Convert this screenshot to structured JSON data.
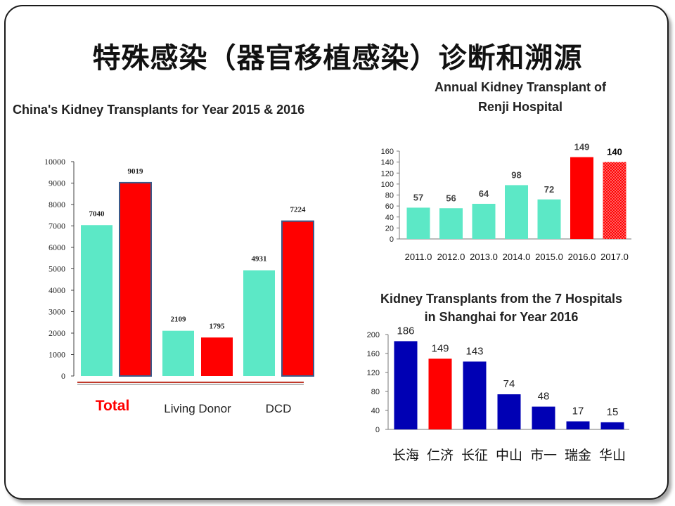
{
  "slide": {
    "title": "特殊感染（器官移植感染）诊断和溯源"
  },
  "colors": {
    "y2015": "#5ce8c6",
    "y2016": "#ff0000",
    "blue": "#0000b4",
    "border": "#3a5a8a"
  },
  "chart_data": [
    {
      "type": "bar",
      "title": "China's Kidney Transplants for Year 2015 & 2016",
      "categories": [
        "Total",
        "Living Donor",
        "DCD"
      ],
      "series": [
        {
          "values": [
            7040,
            2109,
            4931
          ]
        },
        {
          "values": [
            9019,
            1795,
            7224
          ]
        }
      ],
      "ylim": [
        0,
        10000
      ],
      "yticks": [
        0,
        1000,
        2000,
        3000,
        4000,
        5000,
        6000,
        7000,
        8000,
        9000,
        10000
      ],
      "ytick_labels": [
        "0",
        "1000",
        "2000",
        "3000",
        "4000",
        "5000",
        "6000",
        "7000",
        "8000",
        "9000",
        "10000"
      ],
      "grid": false
    },
    {
      "type": "bar",
      "title_lines": [
        "Annual Kidney Transplant of",
        "Renji Hospital"
      ],
      "categories": [
        "2011.0",
        "2012.0",
        "2013.0",
        "2014.0",
        "2015.0",
        "2016.0",
        "2017.0"
      ],
      "values": [
        57,
        56,
        64,
        98,
        72,
        149,
        140
      ],
      "ylim": [
        0,
        160
      ],
      "yticks": [
        0,
        20,
        40,
        60,
        80,
        100,
        120,
        140,
        160
      ],
      "grid": false
    },
    {
      "type": "bar",
      "title_lines": [
        "Kidney Transplants from the 7 Hospitals",
        "in Shanghai for Year 2016"
      ],
      "categories": [
        "长海",
        "仁济",
        "长征",
        "中山",
        "市一",
        "瑞金",
        "华山"
      ],
      "values": [
        186,
        149,
        143,
        74,
        48,
        17,
        15
      ],
      "ylim": [
        0,
        200
      ],
      "yticks": [
        0,
        40,
        80,
        120,
        160,
        200
      ],
      "grid": false
    }
  ]
}
